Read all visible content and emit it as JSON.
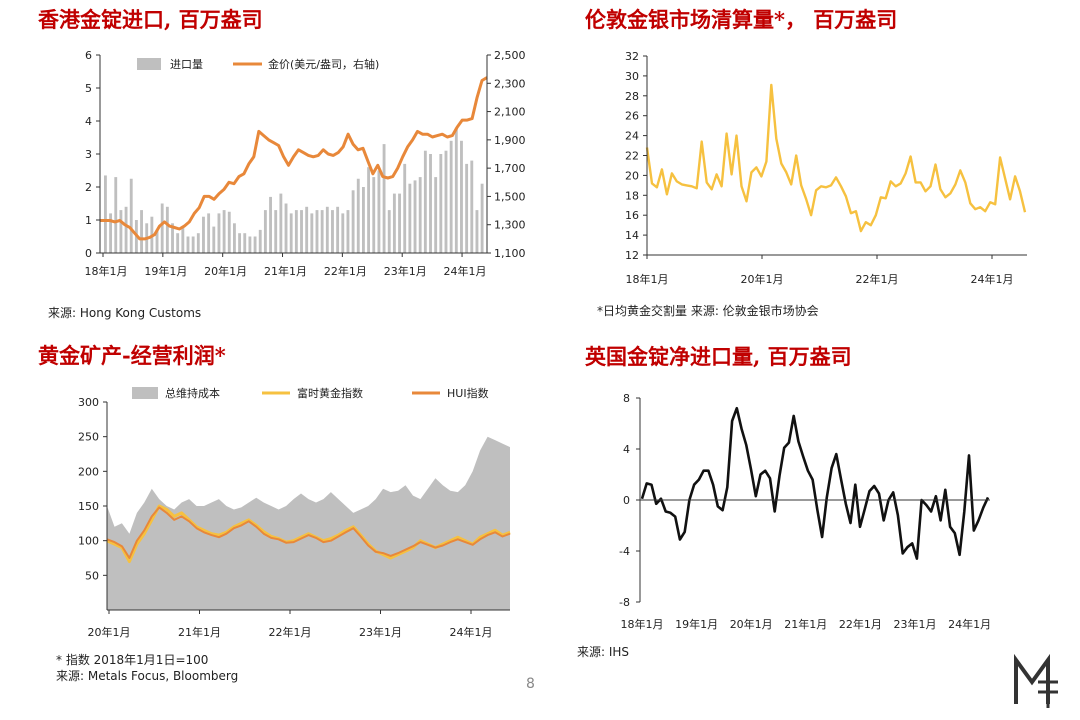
{
  "page_number": "8",
  "colors": {
    "title": "#c00000",
    "gray_bar": "#bfbfbf",
    "orange": "#e8883a",
    "yellow": "#f6c140",
    "black": "#111111"
  },
  "chart_data": [
    {
      "type": "bar",
      "title": "香港金锭进口, 百万盎司",
      "source": "来源: Hong Kong Customs",
      "xtick_labels": [
        "18年1月",
        "19年1月",
        "20年1月",
        "21年1月",
        "22年1月",
        "23年1月",
        "24年1月"
      ],
      "ylim": [
        0,
        6
      ],
      "yticks": [
        0,
        1,
        2,
        3,
        4,
        5,
        6
      ],
      "y2lim": [
        1100,
        2500
      ],
      "y2tick_labels": [
        "1,100",
        "1,300",
        "1,500",
        "1,700",
        "1,900",
        "2,100",
        "2,300",
        "2,500"
      ],
      "y2ticks": [
        1100,
        1300,
        1500,
        1700,
        1900,
        2100,
        2300,
        2500
      ],
      "legend_position": "top",
      "grid": false,
      "series": [
        {
          "name": "进口量",
          "kind": "bar",
          "axis": "left",
          "values": [
            2.35,
            1.2,
            2.3,
            1.3,
            1.4,
            2.25,
            1.0,
            1.3,
            0.9,
            1.1,
            0.7,
            1.5,
            1.4,
            0.9,
            0.6,
            0.8,
            0.5,
            0.5,
            0.6,
            1.1,
            1.2,
            0.8,
            1.2,
            1.3,
            1.25,
            0.9,
            0.6,
            0.6,
            0.5,
            0.5,
            0.7,
            1.3,
            1.7,
            1.3,
            1.8,
            1.5,
            1.2,
            1.3,
            1.3,
            1.4,
            1.2,
            1.3,
            1.3,
            1.4,
            1.3,
            1.4,
            1.2,
            1.3,
            1.9,
            2.25,
            2.0,
            2.6,
            2.3,
            2.5,
            3.3,
            1.3,
            1.8,
            1.8,
            2.7,
            2.1,
            2.2,
            2.3,
            3.1,
            3.0,
            2.3,
            3.0,
            3.1,
            3.4,
            3.8,
            3.4,
            2.7,
            2.8,
            1.3,
            2.1
          ]
        },
        {
          "name": "金价(美元/盎司，右轴)",
          "kind": "line",
          "axis": "right",
          "values": [
            1330,
            1330,
            1330,
            1320,
            1330,
            1300,
            1280,
            1240,
            1200,
            1200,
            1210,
            1230,
            1290,
            1320,
            1290,
            1280,
            1270,
            1290,
            1320,
            1380,
            1420,
            1500,
            1500,
            1480,
            1520,
            1550,
            1600,
            1590,
            1640,
            1660,
            1730,
            1780,
            1960,
            1930,
            1900,
            1880,
            1860,
            1780,
            1720,
            1780,
            1830,
            1810,
            1790,
            1780,
            1790,
            1830,
            1800,
            1790,
            1810,
            1850,
            1940,
            1870,
            1830,
            1840,
            1750,
            1660,
            1720,
            1640,
            1630,
            1640,
            1700,
            1780,
            1850,
            1900,
            1960,
            1940,
            1940,
            1920,
            1930,
            1940,
            1920,
            1930,
            1990,
            2040,
            2040,
            2050,
            2200,
            2320,
            2340
          ]
        }
      ]
    },
    {
      "type": "line",
      "title": "伦敦金银市场清算量*， 百万盎司",
      "source": "*日均黄金交割量 来源: 伦敦金银市场协会",
      "xtick_labels": [
        "18年1月",
        "20年1月",
        "22年1月",
        "24年1月"
      ],
      "ylim": [
        12,
        32
      ],
      "yticks": [
        12,
        14,
        16,
        18,
        20,
        22,
        24,
        26,
        28,
        30,
        32
      ],
      "grid": false,
      "series": [
        {
          "name": "",
          "color": "#f6c140",
          "values": [
            22.8,
            19.2,
            18.8,
            20.6,
            18.1,
            20.2,
            19.4,
            19.1,
            19.0,
            18.9,
            18.7,
            23.4,
            19.3,
            18.6,
            20.1,
            18.9,
            24.2,
            20.1,
            24.0,
            18.9,
            17.4,
            20.3,
            20.8,
            19.9,
            21.4,
            29.1,
            23.7,
            21.2,
            20.3,
            19.1,
            22.0,
            19.0,
            17.6,
            16.0,
            18.5,
            18.9,
            18.8,
            19.0,
            19.8,
            18.9,
            17.9,
            16.2,
            16.4,
            14.4,
            15.3,
            15.0,
            16.0,
            17.8,
            17.7,
            19.4,
            18.9,
            19.2,
            20.2,
            21.9,
            19.3,
            19.3,
            18.4,
            18.9,
            21.1,
            18.6,
            17.8,
            18.2,
            19.1,
            20.5,
            19.3,
            17.2,
            16.6,
            16.8,
            16.4,
            17.3,
            17.1,
            21.8,
            19.7,
            17.6,
            19.9,
            18.4,
            16.3
          ]
        }
      ]
    },
    {
      "type": "area",
      "title": "黄金矿产-经营利润*",
      "source": "* 指数 2018年1月1日=100\n来源: Metals Focus, Bloomberg",
      "xtick_labels": [
        "20年1月",
        "21年1月",
        "22年1月",
        "23年1月",
        "24年1月"
      ],
      "ylim": [
        0,
        300
      ],
      "yticks": [
        50,
        100,
        150,
        200,
        250,
        300
      ],
      "legend_position": "top",
      "grid": false,
      "series": [
        {
          "name": "总维持成本",
          "kind": "area",
          "color": "#bfbfbf",
          "values": [
            150,
            120,
            125,
            110,
            140,
            155,
            175,
            160,
            150,
            145,
            155,
            160,
            150,
            150,
            155,
            160,
            150,
            145,
            148,
            155,
            162,
            155,
            150,
            145,
            150,
            160,
            168,
            160,
            155,
            160,
            170,
            160,
            150,
            140,
            145,
            150,
            160,
            175,
            170,
            172,
            180,
            165,
            160,
            175,
            190,
            180,
            172,
            170,
            180,
            200,
            230,
            250,
            245,
            240,
            235
          ]
        },
        {
          "name": "富时黄金指数",
          "kind": "line",
          "color": "#f6c140",
          "values": [
            100,
            95,
            90,
            70,
            95,
            110,
            130,
            150,
            145,
            135,
            140,
            130,
            120,
            115,
            110,
            108,
            112,
            120,
            125,
            130,
            122,
            113,
            106,
            103,
            98,
            100,
            105,
            110,
            105,
            100,
            103,
            108,
            115,
            120,
            108,
            95,
            85,
            80,
            75,
            80,
            85,
            90,
            100,
            95,
            90,
            95,
            100,
            105,
            100,
            95,
            105,
            110,
            115,
            108,
            112
          ]
        },
        {
          "name": "HUI指数",
          "kind": "line",
          "color": "#e8883a",
          "values": [
            102,
            98,
            92,
            75,
            100,
            115,
            135,
            148,
            140,
            130,
            135,
            128,
            118,
            112,
            108,
            105,
            110,
            118,
            122,
            128,
            120,
            110,
            104,
            102,
            97,
            98,
            103,
            108,
            104,
            98,
            100,
            106,
            112,
            118,
            106,
            93,
            84,
            82,
            78,
            82,
            87,
            92,
            98,
            94,
            90,
            93,
            98,
            102,
            98,
            94,
            102,
            108,
            112,
            106,
            110
          ]
        }
      ]
    },
    {
      "type": "line",
      "title": "英国金锭净进口量, 百万盎司",
      "source": "来源: IHS",
      "xtick_labels": [
        "18年1月",
        "19年1月",
        "20年1月",
        "21年1月",
        "22年1月",
        "23年1月",
        "24年1月"
      ],
      "ylim": [
        -8,
        8
      ],
      "yticks": [
        -8,
        -4,
        0,
        4,
        8
      ],
      "grid": false,
      "series": [
        {
          "name": "",
          "color": "#111111",
          "values": [
            0.1,
            1.3,
            1.2,
            -0.3,
            0.1,
            -0.9,
            -1.0,
            -1.3,
            -3.1,
            -2.5,
            0.0,
            1.2,
            1.6,
            2.3,
            2.3,
            1.2,
            -0.5,
            -0.8,
            1.0,
            6.2,
            7.2,
            5.6,
            4.3,
            2.4,
            0.3,
            2.0,
            2.3,
            1.7,
            -0.9,
            1.9,
            4.1,
            4.5,
            6.6,
            4.6,
            3.4,
            2.3,
            1.6,
            -0.8,
            -2.9,
            0.2,
            2.5,
            3.6,
            1.6,
            -0.3,
            -1.8,
            1.2,
            -2.1,
            -0.7,
            0.7,
            1.1,
            0.5,
            -1.6,
            0.0,
            0.6,
            -1.2,
            -4.2,
            -3.7,
            -3.4,
            -4.6,
            0.0,
            -0.4,
            -0.9,
            0.3,
            -1.6,
            0.8,
            -2.1,
            -2.6,
            -4.3,
            -0.9,
            3.5,
            -2.4,
            -1.6,
            -0.6,
            0.2
          ]
        }
      ]
    }
  ]
}
